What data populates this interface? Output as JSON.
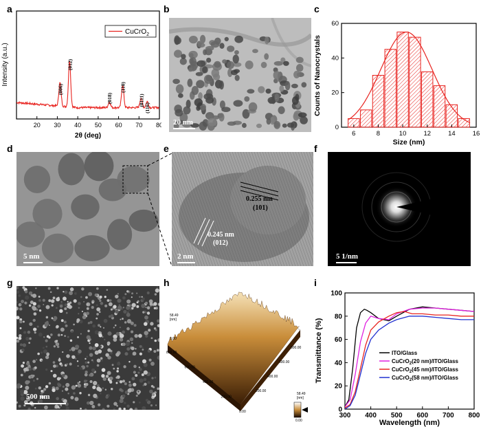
{
  "panel_labels": {
    "a": "a",
    "b": "b",
    "c": "c",
    "d": "d",
    "e": "e",
    "f": "f",
    "g": "g",
    "h": "h",
    "i": "i"
  },
  "scale_bars": {
    "b": "20 nm",
    "d": "5 nm",
    "e": "2 nm",
    "f": "5 1/nm",
    "g": "500 nm"
  },
  "hrtem": {
    "spacing1": "0.255 nm",
    "plane1": "(101)",
    "spacing2": "0.245 nm",
    "plane2": "(012)"
  },
  "afm": {
    "z_max_label": "58.49",
    "z_unit": "[nm]",
    "z_min_label": "0.00",
    "axis_ticks_left": [
      "800.00",
      "600.00",
      "400.00",
      "200.00",
      "0.00"
    ],
    "axis_ticks_right": [
      "200.00",
      "400.00",
      "600.00",
      "800.00"
    ],
    "colorbar_top": "58.49",
    "colorbar_unit": "[nm]",
    "colorbar_bottom": "0.00"
  },
  "chart_data": [
    {
      "type": "line",
      "panel": "a",
      "xlabel": "2θ (deg)",
      "ylabel": "Intensity (a.u.)",
      "xlim": [
        10,
        80
      ],
      "xticks": [
        20,
        30,
        40,
        50,
        60,
        70,
        80
      ],
      "series": [
        {
          "name": "CuCrO2",
          "color": "#e8231f"
        }
      ],
      "peaks": [
        {
          "label": "(006)",
          "x": 31.3
        },
        {
          "label": "(012)",
          "x": 36.0
        },
        {
          "label": "(018)",
          "x": 55.5
        },
        {
          "label": "(110)",
          "x": 62.0
        },
        {
          "label": "(0111)",
          "x": 71.0
        },
        {
          "label": "(116)",
          "x": 74.0
        }
      ]
    },
    {
      "type": "bar",
      "panel": "c",
      "xlabel": "Size (nm)",
      "ylabel": "Counts of Nanocrystals",
      "xlim": [
        5,
        16
      ],
      "ylim": [
        0,
        60
      ],
      "xticks": [
        6,
        8,
        10,
        12,
        14,
        16
      ],
      "yticks": [
        0,
        20,
        40,
        60
      ],
      "x": [
        6,
        7,
        8,
        9,
        10,
        11,
        12,
        13,
        14,
        15
      ],
      "values": [
        5,
        10,
        30,
        45,
        55,
        52,
        32,
        24,
        13,
        5
      ],
      "fit": "gaussian",
      "bar_color": "#e8231f"
    },
    {
      "type": "line",
      "panel": "i",
      "xlabel": "Wavelength (nm)",
      "ylabel": "Transmittance (%)",
      "xlim": [
        300,
        800
      ],
      "ylim": [
        0,
        100
      ],
      "xticks": [
        300,
        400,
        500,
        600,
        700,
        800
      ],
      "yticks": [
        0,
        20,
        40,
        60,
        80,
        100
      ],
      "legend_position": "bottom-right",
      "series": [
        {
          "name": "ITO/Glass",
          "color": "#000000",
          "x": [
            300,
            315,
            330,
            345,
            360,
            375,
            385,
            400,
            430,
            470,
            500,
            550,
            600,
            650,
            700,
            750,
            800
          ],
          "y": [
            2,
            8,
            35,
            70,
            83,
            86,
            85,
            83,
            78,
            76,
            80,
            86,
            88,
            87,
            86,
            85,
            84
          ]
        },
        {
          "name": "CuCrO2(20 nm)/ITO/Glass",
          "color": "#e020e0",
          "x": [
            300,
            320,
            340,
            360,
            380,
            400,
            430,
            470,
            500,
            550,
            600,
            650,
            700,
            750,
            800
          ],
          "y": [
            2,
            8,
            30,
            58,
            74,
            80,
            78,
            77,
            82,
            86,
            87,
            87,
            86,
            85,
            84
          ]
        },
        {
          "name": "CuCrO2(45 nm)/ITO/Glass",
          "color": "#e8231f",
          "x": [
            300,
            320,
            340,
            360,
            380,
            400,
            430,
            470,
            500,
            530,
            560,
            600,
            650,
            700,
            750,
            800
          ],
          "y": [
            1,
            4,
            15,
            35,
            55,
            68,
            75,
            80,
            83,
            84,
            82,
            82,
            81,
            81,
            80,
            80
          ]
        },
        {
          "name": "CuCrO2(58 nm)/ITO/Glass",
          "color": "#2030d0",
          "x": [
            300,
            320,
            340,
            360,
            380,
            400,
            430,
            470,
            500,
            550,
            600,
            650,
            700,
            750,
            800
          ],
          "y": [
            0,
            3,
            12,
            30,
            48,
            60,
            68,
            74,
            77,
            80,
            80,
            79,
            78,
            77,
            77
          ]
        }
      ]
    }
  ]
}
